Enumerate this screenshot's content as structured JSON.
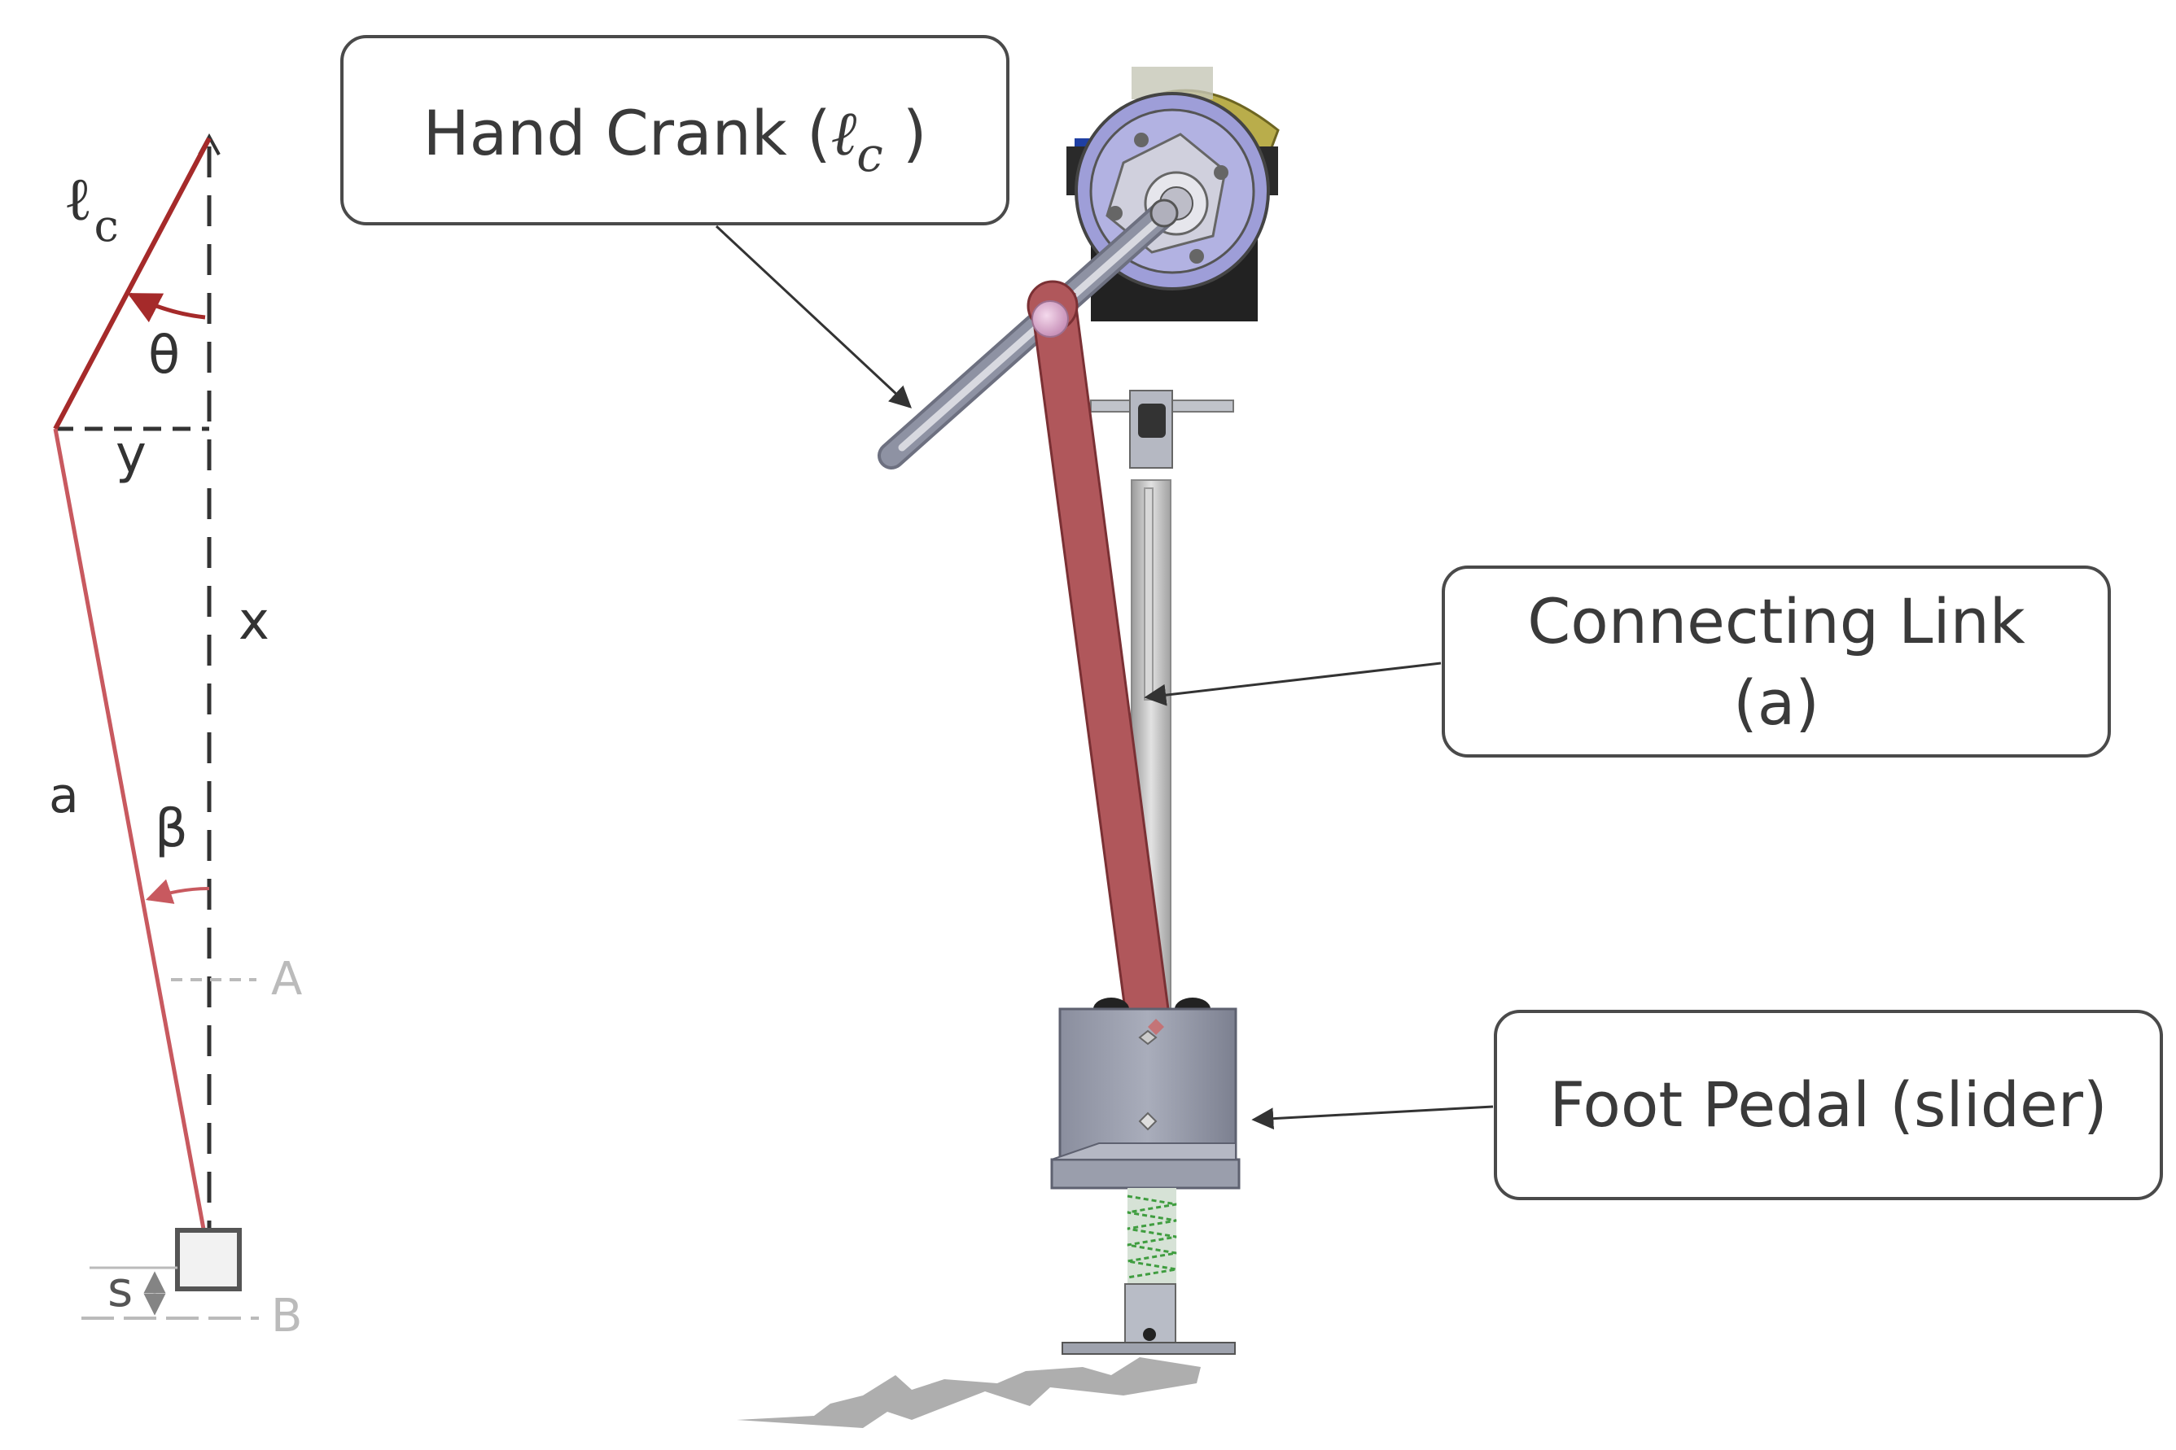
{
  "callouts": {
    "crank": {
      "text": "Hand Crank (",
      "symbol": "ℓ",
      "subscript": "c",
      "close": " )"
    },
    "link": {
      "line1": "Connecting Link",
      "line2": "(a)"
    },
    "pedal": {
      "text": "Foot Pedal (slider)"
    }
  },
  "schematic": {
    "crank_symbol": "ℓ",
    "crank_subscript": "c",
    "theta": "θ",
    "y": "y",
    "x": "x",
    "a": "a",
    "beta": "β",
    "A": "A",
    "B": "B",
    "s": "s"
  },
  "colors": {
    "crank": "#a52a2a",
    "link": "#c8595f",
    "link_3d": "#b0575b",
    "reference_lines": "#333333",
    "faded": "#bbbbbb",
    "callout_border": "#4a4a4a"
  }
}
